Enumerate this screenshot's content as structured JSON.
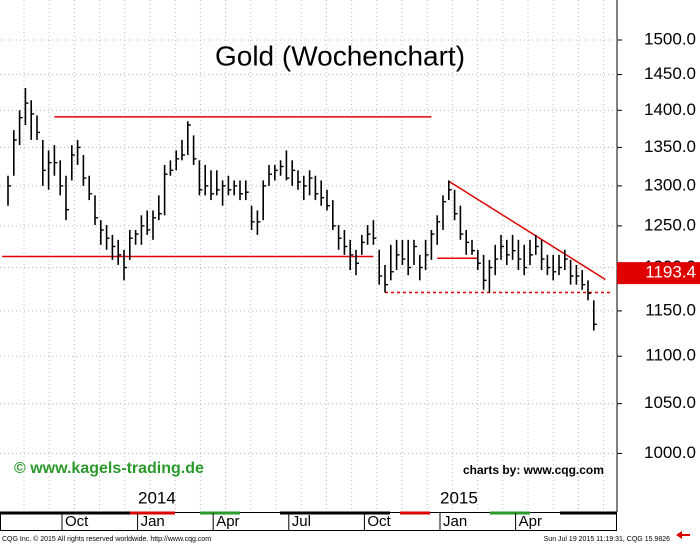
{
  "chart_data": {
    "type": "hlc",
    "title": "Gold (Wochenchart)",
    "log_scale": true,
    "grid": true,
    "bar_color": "#000000",
    "line_color": "#e00000",
    "ylim": [
      946,
      1560
    ],
    "yticks": [
      {
        "value": 1000,
        "label": "1000.0"
      },
      {
        "value": 1050,
        "label": "1050.0"
      },
      {
        "value": 1100,
        "label": "1100.0"
      },
      {
        "value": 1150,
        "label": "1150.0"
      },
      {
        "value": 1200,
        "label": "1200.0"
      },
      {
        "value": 1250,
        "label": "1250.0"
      },
      {
        "value": 1300,
        "label": "1300.0"
      },
      {
        "value": 1350,
        "label": "1350.0"
      },
      {
        "value": 1400,
        "label": "1400.0"
      },
      {
        "value": 1450,
        "label": "1450.0"
      },
      {
        "value": 1500,
        "label": "1500.0"
      }
    ],
    "x_labels": [
      "Oct",
      "Jan",
      "Apr",
      "Jul",
      "Oct",
      "Jan",
      "Apr"
    ],
    "year_labels": [
      "2014",
      "2015"
    ],
    "high": [
      1313,
      1373,
      1400,
      1431,
      1414,
      1393,
      1360,
      1346,
      1353,
      1333,
      1313,
      1353,
      1360,
      1340,
      1313,
      1288,
      1257,
      1251,
      1239,
      1233,
      1221,
      1245,
      1245,
      1263,
      1269,
      1269,
      1288,
      1327,
      1333,
      1346,
      1360,
      1385,
      1366,
      1333,
      1327,
      1320,
      1320,
      1307,
      1313,
      1307,
      1307,
      1307,
      1275,
      1269,
      1307,
      1327,
      1327,
      1333,
      1346,
      1333,
      1320,
      1313,
      1320,
      1313,
      1307,
      1295,
      1282,
      1251,
      1245,
      1233,
      1221,
      1239,
      1251,
      1257,
      1221,
      1203,
      1227,
      1233,
      1233,
      1233,
      1233,
      1215,
      1233,
      1245,
      1263,
      1288,
      1307,
      1295,
      1275,
      1245,
      1233,
      1221,
      1215,
      1209,
      1227,
      1239,
      1233,
      1239,
      1233,
      1227,
      1233,
      1239,
      1233,
      1215,
      1215,
      1215,
      1221,
      1209,
      1203,
      1197,
      1185,
      1162
    ],
    "low": [
      1275,
      1313,
      1353,
      1380,
      1360,
      1360,
      1300,
      1295,
      1313,
      1288,
      1257,
      1307,
      1327,
      1300,
      1282,
      1251,
      1227,
      1221,
      1209,
      1203,
      1185,
      1209,
      1227,
      1227,
      1239,
      1233,
      1257,
      1263,
      1313,
      1320,
      1333,
      1340,
      1327,
      1288,
      1288,
      1282,
      1288,
      1275,
      1288,
      1288,
      1282,
      1282,
      1245,
      1239,
      1257,
      1300,
      1307,
      1313,
      1307,
      1300,
      1295,
      1282,
      1288,
      1282,
      1275,
      1269,
      1245,
      1221,
      1215,
      1197,
      1191,
      1215,
      1227,
      1227,
      1180,
      1171,
      1185,
      1197,
      1203,
      1191,
      1203,
      1185,
      1197,
      1209,
      1227,
      1245,
      1282,
      1257,
      1233,
      1215,
      1215,
      1197,
      1174,
      1171,
      1191,
      1209,
      1203,
      1209,
      1197,
      1191,
      1203,
      1215,
      1197,
      1191,
      1185,
      1191,
      1197,
      1180,
      1180,
      1174,
      1162,
      1128
    ],
    "close": [
      1300,
      1360,
      1390,
      1410,
      1395,
      1370,
      1320,
      1330,
      1330,
      1300,
      1270,
      1340,
      1350,
      1310,
      1290,
      1260,
      1245,
      1235,
      1225,
      1215,
      1200,
      1235,
      1240,
      1250,
      1245,
      1260,
      1265,
      1315,
      1320,
      1335,
      1340,
      1380,
      1335,
      1295,
      1300,
      1290,
      1295,
      1300,
      1295,
      1300,
      1290,
      1292,
      1255,
      1255,
      1300,
      1315,
      1320,
      1325,
      1310,
      1320,
      1305,
      1300,
      1310,
      1290,
      1285,
      1275,
      1250,
      1235,
      1225,
      1215,
      1205,
      1230,
      1240,
      1235,
      1190,
      1180,
      1195,
      1215,
      1210,
      1200,
      1225,
      1200,
      1215,
      1240,
      1255,
      1280,
      1295,
      1265,
      1240,
      1230,
      1220,
      1205,
      1185,
      1200,
      1210,
      1225,
      1215,
      1220,
      1210,
      1200,
      1215,
      1225,
      1210,
      1200,
      1195,
      1200,
      1210,
      1190,
      1190,
      1180,
      1170,
      1135
    ],
    "lines": [
      {
        "from": [
          8,
          1391
        ],
        "to": [
          73,
          1391
        ],
        "dashed": false
      },
      {
        "from": [
          -1,
          1213
        ],
        "to": [
          63,
          1213
        ],
        "dashed": false
      },
      {
        "from": [
          74,
          1211
        ],
        "to": [
          81,
          1211
        ],
        "dashed": false
      },
      {
        "from": [
          76,
          1306
        ],
        "to": [
          103,
          1186
        ],
        "dashed": false
      },
      {
        "from": [
          65,
          1171
        ],
        "to": [
          104,
          1171
        ],
        "dashed": true
      }
    ],
    "last_price": {
      "value": 1193.4,
      "label": "1193.4"
    },
    "watermark": "© www.kagels-trading.de",
    "source": "charts by: www.cqg.com",
    "footer_left": "CQG Inc. © 2015 All rights reserved worldwide. http://www.cqg.com",
    "footer_right": "Sun Jul 19 2015 11:19:31, CQG 15.9826"
  }
}
